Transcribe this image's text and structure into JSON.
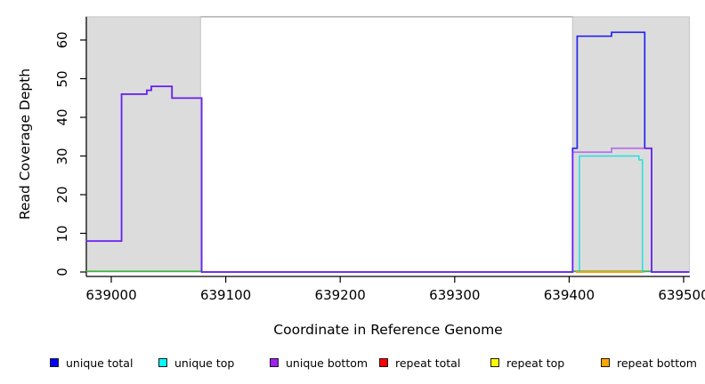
{
  "chart_data": {
    "type": "line",
    "title": "",
    "xlabel": "Coordinate in Reference Genome",
    "ylabel": "Read Coverage Depth",
    "xlim": [
      638978,
      639505
    ],
    "ylim": [
      0,
      66
    ],
    "grid": false,
    "legend_position": "bottom",
    "xticks": [
      639000,
      639100,
      639200,
      639300,
      639400,
      639500
    ],
    "xtick_labels": [
      "639000",
      "639100",
      "639200",
      "639300",
      "639400",
      "639500"
    ],
    "yticks": [
      0,
      10,
      20,
      30,
      40,
      50,
      60
    ],
    "ytick_labels": [
      "0",
      "10",
      "20",
      "30",
      "40",
      "50",
      "60"
    ],
    "shaded_regions": [
      {
        "name": "repeat-region-left",
        "x0": 638978,
        "x1": 639078,
        "color": "#DCDCDC",
        "border": "#C4C4C4"
      },
      {
        "name": "repeat-region-right",
        "x0": 639403,
        "x1": 639505,
        "color": "#DCDCDC",
        "border": "#C4C4C4"
      }
    ],
    "boundary_line": {
      "y": 66,
      "x0": 639078,
      "x1": 639403,
      "color": "#A0A0A0"
    },
    "baseline_overlap_segments": [
      {
        "x0": 638978,
        "x1": 639079,
        "y": 0,
        "color": "#3CB43C"
      },
      {
        "x0": 639403,
        "x1": 639472,
        "y": 0,
        "color": "#3CB43C"
      }
    ],
    "series": [
      {
        "name": "unique total",
        "color": "#2323EE",
        "opacity": 1,
        "width": 1.7,
        "z": 4,
        "points": [
          [
            638978,
            8
          ],
          [
            639009,
            46
          ],
          [
            639031,
            47
          ],
          [
            639035,
            48
          ],
          [
            639053,
            45
          ],
          [
            639079,
            0
          ],
          [
            639403,
            32
          ],
          [
            639407,
            61
          ],
          [
            639437,
            62
          ],
          [
            639466,
            32
          ],
          [
            639472,
            0
          ],
          [
            639505,
            0
          ]
        ]
      },
      {
        "name": "unique top",
        "color": "#00E0E0",
        "opacity": 0.85,
        "width": 1.5,
        "z": 5,
        "points": [
          [
            639409,
            0
          ],
          [
            639409,
            30
          ],
          [
            639461,
            29
          ],
          [
            639464,
            0
          ],
          [
            639466,
            0
          ]
        ]
      },
      {
        "name": "unique bottom",
        "color": "#A020F0",
        "opacity": 0.55,
        "width": 1.8,
        "z": 6,
        "points": [
          [
            638978,
            8
          ],
          [
            639009,
            46
          ],
          [
            639031,
            47
          ],
          [
            639035,
            48
          ],
          [
            639053,
            45
          ],
          [
            639079,
            0
          ],
          [
            639403,
            31
          ],
          [
            639437,
            32
          ],
          [
            639472,
            0
          ],
          [
            639505,
            0
          ]
        ]
      },
      {
        "name": "repeat total",
        "color": "#EE0000",
        "opacity": 1,
        "width": 1.5,
        "z": 1,
        "points": []
      },
      {
        "name": "repeat top",
        "color": "#FFFF00",
        "opacity": 1,
        "width": 1.5,
        "z": 2,
        "points": []
      },
      {
        "name": "repeat bottom",
        "color": "#FF9D00",
        "opacity": 1,
        "width": 2,
        "z": 3,
        "points": [
          [
            639406,
            0
          ],
          [
            639464,
            0
          ]
        ]
      }
    ],
    "legend": [
      {
        "label": "unique total",
        "color": "#0000FF"
      },
      {
        "label": "unique top",
        "color": "#00FFFF"
      },
      {
        "label": "unique bottom",
        "color": "#A020F0"
      },
      {
        "label": "repeat total",
        "color": "#FF0000"
      },
      {
        "label": "repeat top",
        "color": "#FFFF00"
      },
      {
        "label": "repeat bottom",
        "color": "#FFA500"
      }
    ]
  }
}
